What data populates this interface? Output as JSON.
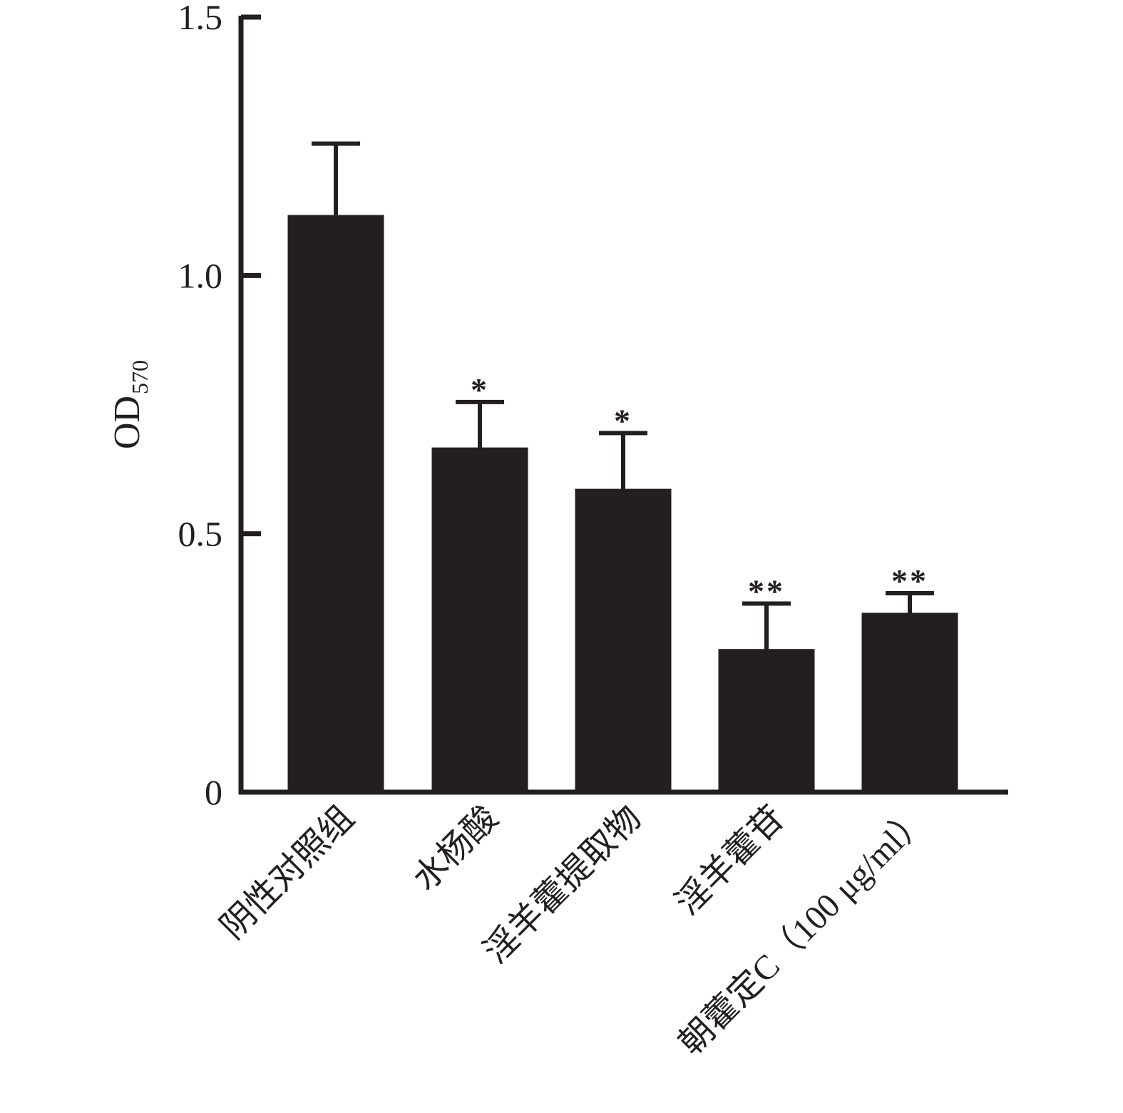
{
  "chart_data": {
    "type": "bar",
    "title": "",
    "xlabel": "",
    "ylabel": "OD",
    "ylabel_subscript": "570",
    "ylim": [
      0,
      1.5
    ],
    "yticks": [
      {
        "value": 0,
        "label": "0"
      },
      {
        "value": 0.5,
        "label": "0.5"
      },
      {
        "value": 1.0,
        "label": "1.0"
      },
      {
        "value": 1.5,
        "label": "1.5"
      }
    ],
    "categories": [
      "阴性对照组",
      "水杨酸",
      "淫羊藿提取物",
      "淫羊藿苷",
      "朝藿定C（100 μg/ml）"
    ],
    "values": [
      1.115,
      0.665,
      0.585,
      0.275,
      0.345
    ],
    "errors": [
      0.14,
      0.09,
      0.11,
      0.09,
      0.04
    ],
    "significance": [
      "",
      "*",
      "*",
      "**",
      "**"
    ],
    "bar_color": "#231f20",
    "grid": false,
    "legend": "none"
  }
}
